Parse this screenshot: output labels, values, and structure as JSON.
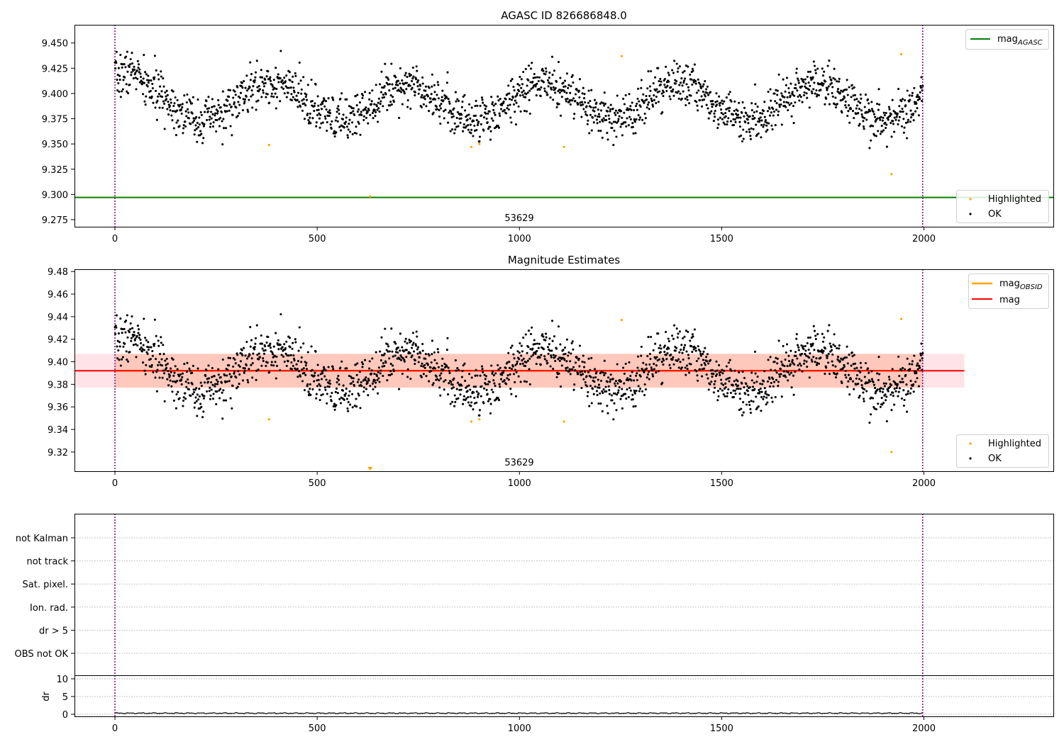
{
  "figure": {
    "title_top": "AGASC ID 826686848.0",
    "title_mid": "Magnitude Estimates"
  },
  "colors": {
    "ok": "#000000",
    "highlighted": "#ffa500",
    "agasc_line": "#008000",
    "mag_line": "#ff0000",
    "obsid_line": "#ffa500",
    "obsid_band": "#ffa07a",
    "mag_band": "#ffc0cb",
    "obs_boundary": "#800080",
    "grid": "#b0b0b0"
  },
  "chart_data": [
    {
      "type": "scatter",
      "title": "AGASC ID 826686848.0",
      "xlim": [
        -100,
        2320
      ],
      "ylim": [
        9.268,
        9.468
      ],
      "xticks": [
        0,
        500,
        1000,
        1500,
        2000
      ],
      "yticks": [
        9.275,
        9.3,
        9.325,
        9.35,
        9.375,
        9.4,
        9.425,
        9.45
      ],
      "ytick_labels": [
        "9.275",
        "9.300",
        "9.325",
        "9.350",
        "9.375",
        "9.400",
        "9.425",
        "9.450"
      ],
      "obsid_label": "53629",
      "obsid_boundaries": [
        0,
        1997
      ],
      "mag_agasc": 9.297,
      "series": [
        {
          "name": "Highlighted",
          "points": [
            [
              381,
              9.349
            ],
            [
              631,
              9.298
            ],
            [
              881,
              9.347
            ],
            [
              901,
              9.35
            ],
            [
              1110,
              9.347
            ],
            [
              1253,
              9.437
            ],
            [
              1920,
              9.32
            ],
            [
              1944,
              9.439
            ]
          ]
        },
        {
          "name": "OK",
          "generator": {
            "n": 1900,
            "x_range": [
              0,
              1997
            ],
            "base": 9.392,
            "amplitude": 0.018,
            "period": 336,
            "phase_x": 50,
            "noise_sd": 0.011,
            "seed": 7
          }
        }
      ],
      "legend": {
        "upper_right": [
          "mag_AGASC"
        ],
        "lower_right": [
          "Highlighted",
          "OK"
        ]
      }
    },
    {
      "type": "scatter",
      "title": "Magnitude Estimates",
      "xlim": [
        -100,
        2320
      ],
      "ylim": [
        9.303,
        9.482
      ],
      "xticks": [
        0,
        500,
        1000,
        1500,
        2000
      ],
      "yticks": [
        9.32,
        9.34,
        9.36,
        9.38,
        9.4,
        9.42,
        9.44,
        9.46,
        9.48
      ],
      "ytick_labels": [
        "9.32",
        "9.34",
        "9.36",
        "9.38",
        "9.40",
        "9.42",
        "9.44",
        "9.46",
        "9.48"
      ],
      "obsid_label": "53629",
      "obsid_boundaries": [
        0,
        1997
      ],
      "mag": 9.392,
      "mag_band": [
        9.377,
        9.407
      ],
      "mag_obsid": 9.392,
      "mag_obsid_band": [
        9.377,
        9.407
      ],
      "band_x_range": [
        -100,
        2100
      ],
      "clipped_marker": {
        "x": 631,
        "y": 9.304
      },
      "series": [
        {
          "name": "Highlighted",
          "points": [
            [
              381,
              9.349
            ],
            [
              881,
              9.347
            ],
            [
              901,
              9.349
            ],
            [
              1110,
              9.347
            ],
            [
              1253,
              9.437
            ],
            [
              1920,
              9.32
            ],
            [
              1944,
              9.438
            ]
          ]
        },
        {
          "name": "OK",
          "same_as": "panel_1"
        }
      ],
      "legend": {
        "upper_right": [
          "mag_OBSID",
          "mag"
        ],
        "lower_right": [
          "Highlighted",
          "OK"
        ]
      }
    },
    {
      "type": "table",
      "xlim": [
        -100,
        2320
      ],
      "flag_rows": [
        "not Kalman",
        "not track",
        "Sat. pixel.",
        "Ion. rad.",
        "dr > 5",
        "OBS not OK"
      ],
      "obsid_boundaries": [
        0,
        1997
      ]
    },
    {
      "type": "line",
      "ylabel": "dr",
      "xlim": [
        -100,
        2320
      ],
      "ylim": [
        -0.6,
        11
      ],
      "xticks": [
        0,
        500,
        1000,
        1500,
        2000
      ],
      "yticks": [
        0,
        5,
        10
      ],
      "dr_level": 0.3,
      "obsid_boundaries": [
        0,
        1997
      ]
    }
  ],
  "legend": {
    "mag_agasc_base": "mag",
    "mag_agasc_sub": "AGASC",
    "mag_obsid_base": "mag",
    "mag_obsid_sub": "OBSID",
    "mag": "mag",
    "highlighted": "Highlighted",
    "ok": "OK"
  }
}
